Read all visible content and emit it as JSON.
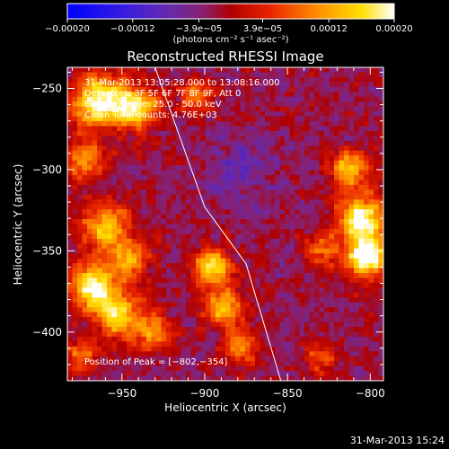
{
  "window": {
    "timestamp": "31-Mar-2013 15:24"
  },
  "colors": {
    "background": "#000000",
    "foreground": "#ffffff",
    "limb_line": "#ffffff"
  },
  "chart_data": {
    "type": "heatmap",
    "title": "Reconstructed RHESSI Image",
    "xlabel": "Heliocentric X (arcsec)",
    "ylabel": "Heliocentric Y (arcsec)",
    "xlim": [
      -983,
      -792
    ],
    "ylim": [
      -430,
      -237
    ],
    "x_ticks": [
      -950,
      -900,
      -850,
      -800
    ],
    "x_tick_labels": [
      "−950",
      "−900",
      "−850",
      "−800"
    ],
    "y_ticks": [
      -250,
      -300,
      -350,
      -400
    ],
    "y_tick_labels": [
      "−250",
      "−300",
      "−350",
      "−400"
    ],
    "grid": false,
    "colormap": "blue-purple-red-yellow-white",
    "colorbar": {
      "range": [
        -0.0002,
        0.0002
      ],
      "ticks": [
        -0.0002,
        -0.00012,
        -3.9e-05,
        3.9e-05,
        0.00012,
        0.0002
      ],
      "tick_labels": [
        "−0.00020",
        "−0.00012",
        "−3.9e−05",
        "3.9e−05",
        "0.00012",
        "0.00020"
      ],
      "unit_label": "(photons cm⁻² s⁻¹ asec⁻²)"
    },
    "annotations": {
      "time_range": "31-Mar-2013 13:05:28.000 to 13:08:16.000",
      "detectors": "Detectors: 3F 5F 6F 7F 8F 9F, Att 0",
      "energy_range": "Energy Range: 25.0 - 50.0 keV",
      "clean": "Clean    Total counts: 4.76E+03",
      "peak": "Position of Peak = [−802,−354]"
    },
    "peak_position": [
      -802,
      -354
    ],
    "total_counts": 4760,
    "energy_range_kev": [
      25.0,
      50.0
    ],
    "limb_line": [
      [
        -930,
        -237
      ],
      [
        -900,
        -323
      ],
      [
        -875,
        -358
      ],
      [
        -854,
        -430
      ]
    ]
  }
}
